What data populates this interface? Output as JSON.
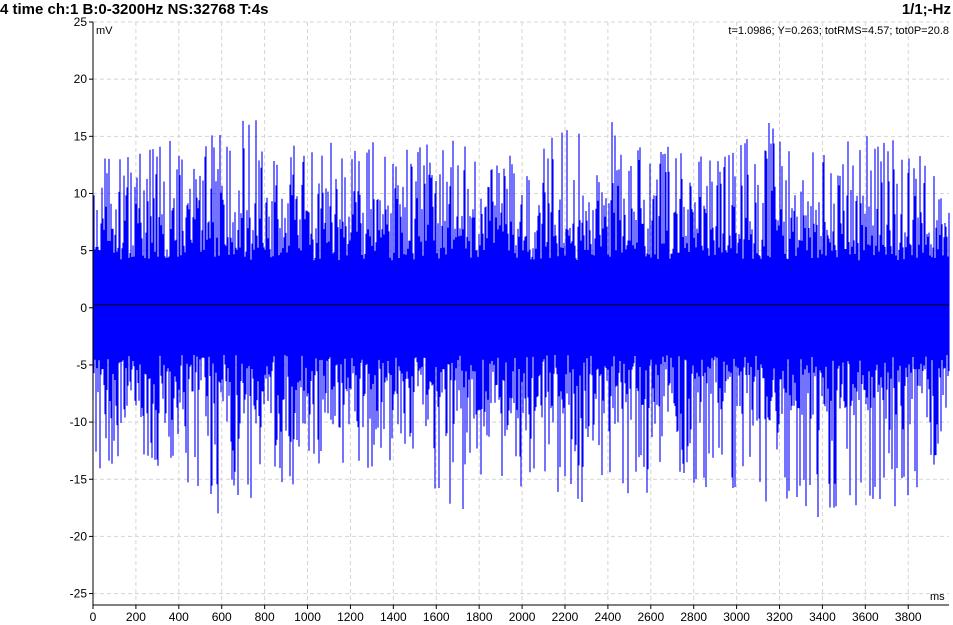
{
  "header": {
    "title_left": "4 time ch:1 B:0-3200Hz NS:32768 T:4s",
    "title_right": "1/1;-Hz"
  },
  "cursor_readout": "t=1.0986; Y=0.263; totRMS=4.57; tot0P=20.8",
  "chart_data": {
    "type": "line",
    "xlabel": "ms",
    "ylabel": "mV",
    "xlim": [
      0,
      3990
    ],
    "ylim": [
      -26,
      25
    ],
    "x_ticks": [
      0,
      200,
      400,
      600,
      800,
      1000,
      1200,
      1400,
      1600,
      1800,
      2000,
      2200,
      2400,
      2600,
      2800,
      3000,
      3200,
      3400,
      3600,
      3800
    ],
    "y_ticks": [
      25,
      20,
      15,
      10,
      5,
      0,
      -5,
      -10,
      -15,
      -20,
      -25
    ],
    "grid": true,
    "series_color": "#0000ff",
    "zero_line_color": "#000000",
    "rms": 4.57,
    "peak": 20.8,
    "mean": 0.263,
    "envelope": {
      "x": [
        0,
        100,
        200,
        300,
        400,
        500,
        600,
        700,
        800,
        900,
        1000,
        1100,
        1200,
        1300,
        1400,
        1500,
        1600,
        1700,
        1800,
        1900,
        2000,
        2100,
        2200,
        2300,
        2400,
        2500,
        2600,
        2700,
        2800,
        2900,
        3000,
        3100,
        3200,
        3300,
        3400,
        3500,
        3600,
        3700,
        3800,
        3900,
        3990
      ],
      "upper": [
        12.5,
        13.5,
        13.0,
        15.5,
        14.5,
        15.0,
        16.0,
        18.5,
        15.0,
        14.0,
        14.5,
        15.5,
        14.0,
        15.0,
        13.5,
        14.0,
        14.5,
        15.0,
        13.5,
        13.0,
        14.0,
        15.0,
        15.5,
        16.0,
        17.0,
        15.5,
        14.0,
        14.5,
        13.5,
        14.0,
        15.0,
        14.5,
        18.5,
        16.0,
        15.5,
        14.5,
        16.0,
        15.5,
        15.0,
        13.5,
        8.5
      ],
      "lower": [
        -15.0,
        -17.0,
        -14.5,
        -16.5,
        -15.0,
        -16.0,
        -21.0,
        -17.5,
        -16.0,
        -15.5,
        -16.0,
        -17.0,
        -15.0,
        -16.5,
        -15.0,
        -15.5,
        -16.0,
        -18.5,
        -15.5,
        -15.0,
        -16.0,
        -16.5,
        -18.0,
        -17.5,
        -18.5,
        -17.0,
        -16.0,
        -16.5,
        -15.5,
        -16.0,
        -17.0,
        -16.5,
        -18.0,
        -17.5,
        -19.5,
        -17.0,
        -17.5,
        -18.0,
        -16.5,
        -15.5,
        -7.5
      ]
    }
  }
}
